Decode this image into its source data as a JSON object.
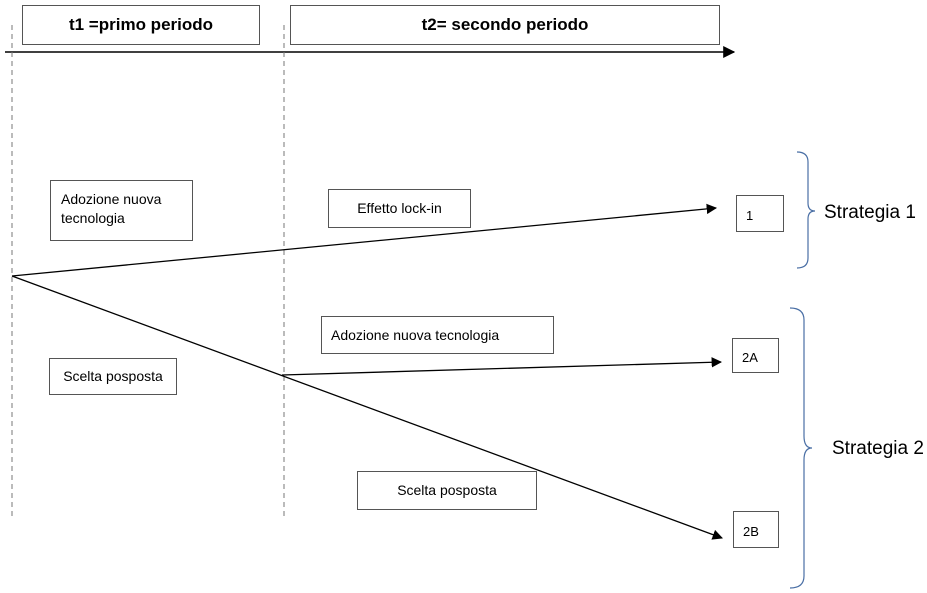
{
  "headers": {
    "t1": "t1 =primo periodo",
    "t2": "t2= secondo periodo"
  },
  "labels": {
    "adozione_t1": "Adozione nuova tecnologia",
    "scelta_t1": "Scelta posposta",
    "lockin": "Effetto lock-in",
    "adozione_t2": "Adozione nuova tecnologia",
    "scelta_t2": "Scelta posposta"
  },
  "outcomes": {
    "o1": "1",
    "o2a": "2A",
    "o2b": "2B"
  },
  "strategies": {
    "s1": "Strategia 1",
    "s2": "Strategia 2"
  },
  "colors": {
    "bracket": "#4a6fa5",
    "line": "#000000",
    "dashed": "#777777"
  }
}
